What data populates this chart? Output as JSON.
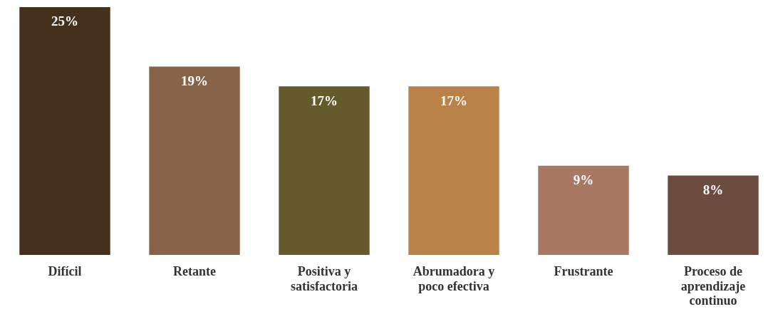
{
  "chart_data": {
    "type": "bar",
    "categories": [
      "Difícil",
      "Retante",
      "Positiva y satisfactoria",
      "Abrumadora y poco efectiva",
      "Frustrante",
      "Proceso de aprendizaje continuo"
    ],
    "values": [
      25,
      19,
      17,
      17,
      9,
      8
    ],
    "colors": [
      "#45301e",
      "#87634a",
      "#655a2c",
      "#b88248",
      "#a87862",
      "#6b4c3e"
    ],
    "value_labels": [
      "25%",
      "19%",
      "17%",
      "17%",
      "9%",
      "8%"
    ],
    "grid": false,
    "legend": false
  }
}
